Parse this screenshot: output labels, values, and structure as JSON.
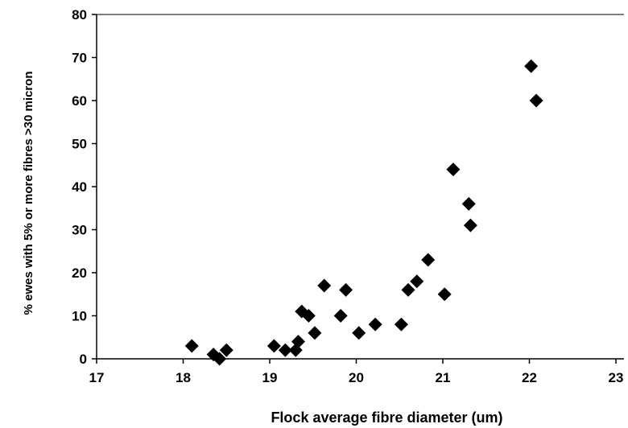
{
  "chart_data": {
    "type": "scatter",
    "title": "",
    "xlabel": "Flock average fibre diameter (um)",
    "ylabel": "% ewes with 5% or more fibres >30 micron",
    "xlim": [
      17,
      23
    ],
    "ylim": [
      0,
      80
    ],
    "xticks": [
      "17",
      "18",
      "19",
      "20",
      "21",
      "22",
      "23"
    ],
    "yticks": [
      "0",
      "10",
      "20",
      "30",
      "40",
      "50",
      "60",
      "70",
      "80"
    ],
    "grid": false,
    "legend": "none",
    "marker": "diamond",
    "marker_color": "#000000",
    "points": [
      {
        "x": 18.1,
        "y": 3
      },
      {
        "x": 18.35,
        "y": 1
      },
      {
        "x": 18.42,
        "y": 0
      },
      {
        "x": 18.5,
        "y": 2
      },
      {
        "x": 19.05,
        "y": 3
      },
      {
        "x": 19.18,
        "y": 2
      },
      {
        "x": 19.3,
        "y": 2
      },
      {
        "x": 19.33,
        "y": 4
      },
      {
        "x": 19.37,
        "y": 11
      },
      {
        "x": 19.45,
        "y": 10
      },
      {
        "x": 19.52,
        "y": 6
      },
      {
        "x": 19.63,
        "y": 17
      },
      {
        "x": 19.82,
        "y": 10
      },
      {
        "x": 19.88,
        "y": 16
      },
      {
        "x": 20.03,
        "y": 6
      },
      {
        "x": 20.22,
        "y": 8
      },
      {
        "x": 20.52,
        "y": 8
      },
      {
        "x": 20.6,
        "y": 16
      },
      {
        "x": 20.7,
        "y": 18
      },
      {
        "x": 20.83,
        "y": 23
      },
      {
        "x": 21.02,
        "y": 15
      },
      {
        "x": 21.12,
        "y": 44
      },
      {
        "x": 21.3,
        "y": 36
      },
      {
        "x": 21.32,
        "y": 31
      },
      {
        "x": 22.02,
        "y": 68
      },
      {
        "x": 22.08,
        "y": 60
      }
    ]
  }
}
